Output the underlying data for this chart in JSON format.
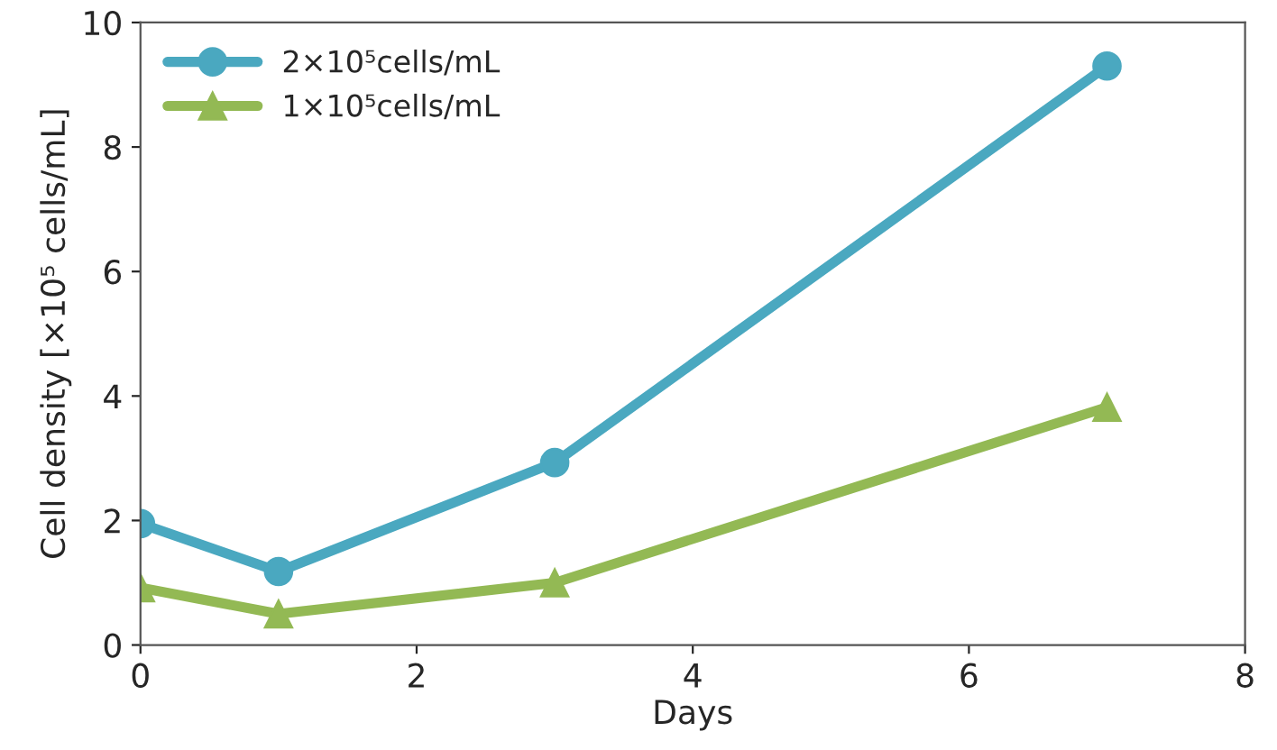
{
  "chart_data": {
    "type": "line",
    "xlabel": "Days",
    "ylabel": "Cell density [×10⁵ cells/mL]",
    "x": [
      0,
      1,
      3,
      7
    ],
    "series": [
      {
        "name": "2×10⁵cells/mL",
        "color": "#4aa8c0",
        "marker": "circle",
        "values": [
          1.95,
          1.18,
          2.93,
          9.3
        ]
      },
      {
        "name": "1×10⁵cells/mL",
        "color": "#93b954",
        "marker": "triangle",
        "values": [
          0.92,
          0.5,
          1.0,
          3.82
        ]
      }
    ],
    "xlim": [
      0,
      8
    ],
    "xticks": [
      0,
      2,
      4,
      6,
      8
    ],
    "ylim": [
      0,
      10
    ],
    "yticks": [
      0,
      2,
      4,
      6,
      8,
      10
    ],
    "grid": false,
    "legend": "top left",
    "line_style": "solid"
  }
}
